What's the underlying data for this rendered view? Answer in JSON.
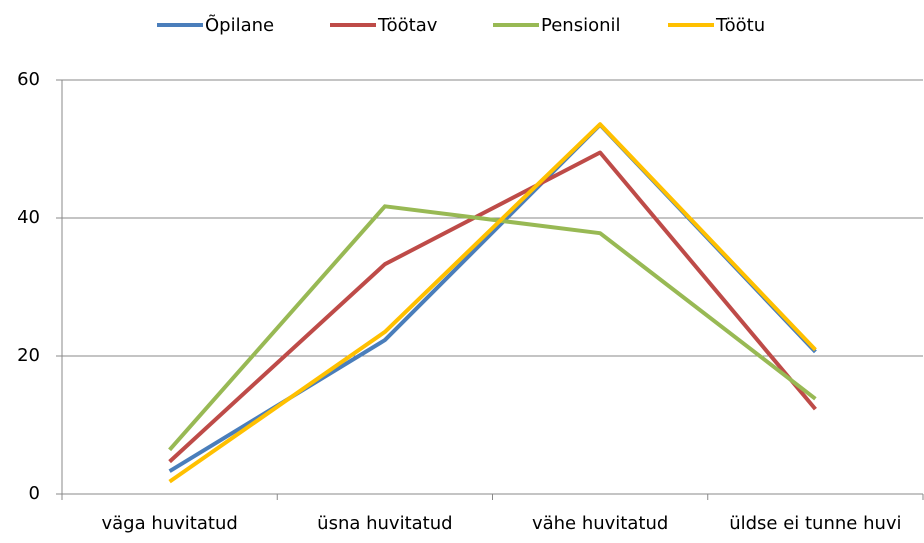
{
  "chart_data": {
    "type": "line",
    "categories": [
      "väga huvitatud",
      "üsna huvitatud",
      "vähe huvitatud",
      "üldse ei tunne huvi"
    ],
    "series": [
      {
        "name": "Õpilane",
        "color": "#4a7ebb",
        "values": [
          3.3,
          22.3,
          53.5,
          20.6
        ]
      },
      {
        "name": "Töötav",
        "color": "#be4b48",
        "values": [
          4.7,
          33.3,
          49.5,
          12.3
        ]
      },
      {
        "name": "Pensionil",
        "color": "#98b954",
        "values": [
          6.4,
          41.7,
          37.8,
          13.8
        ]
      },
      {
        "name": "Töötu",
        "color": "#ffc000",
        "values": [
          1.8,
          23.5,
          53.6,
          20.9
        ]
      }
    ],
    "ylim": [
      0,
      60
    ],
    "yticks": [
      0,
      20,
      40,
      60
    ],
    "grid": true,
    "legend": "top"
  }
}
